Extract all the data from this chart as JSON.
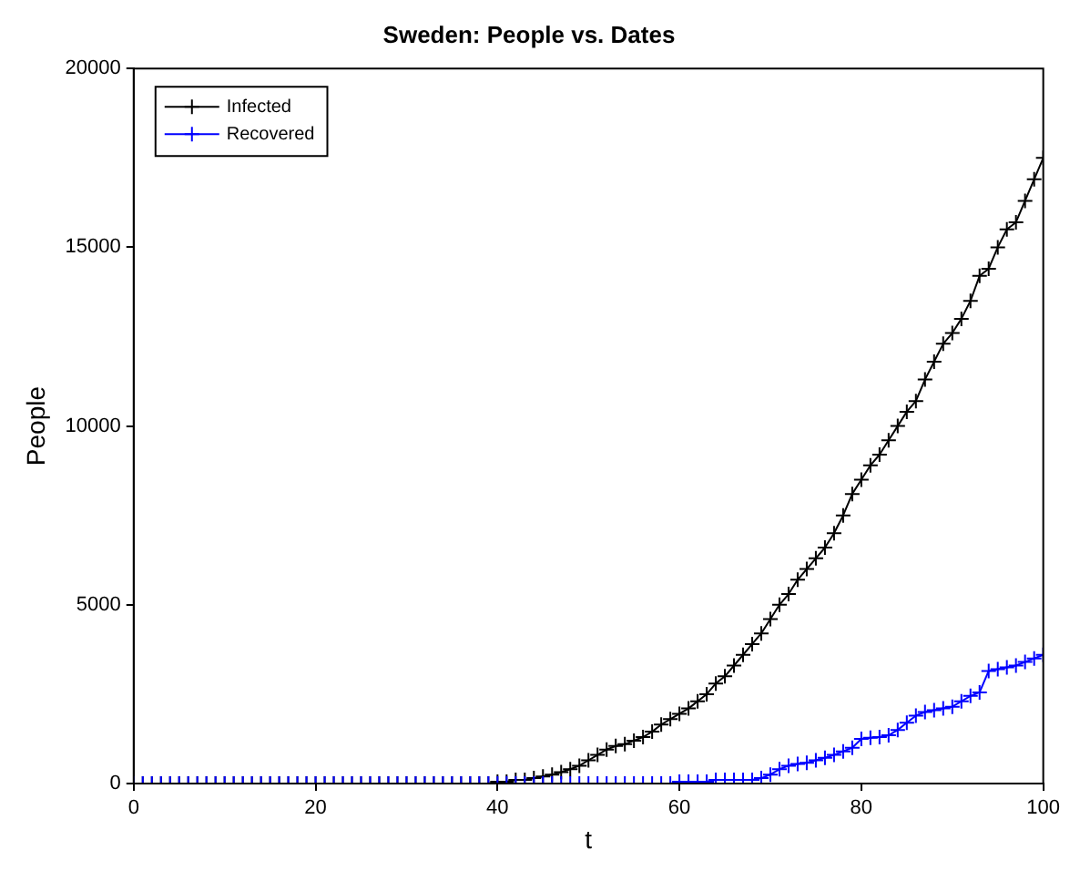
{
  "chart_data": {
    "type": "line",
    "title": "Sweden: People vs. Dates",
    "xlabel": "t",
    "ylabel": "People",
    "x": [
      0,
      1,
      2,
      3,
      4,
      5,
      6,
      7,
      8,
      9,
      10,
      11,
      12,
      13,
      14,
      15,
      16,
      17,
      18,
      19,
      20,
      21,
      22,
      23,
      24,
      25,
      26,
      27,
      28,
      29,
      30,
      31,
      32,
      33,
      34,
      35,
      36,
      37,
      38,
      39,
      40,
      41,
      42,
      43,
      44,
      45,
      46,
      47,
      48,
      49,
      50,
      51,
      52,
      53,
      54,
      55,
      56,
      57,
      58,
      59,
      60,
      61,
      62,
      63,
      64,
      65,
      66,
      67,
      68,
      69,
      70,
      71,
      72,
      73,
      74,
      75,
      76,
      77,
      78,
      79,
      80,
      81,
      82,
      83,
      84,
      85,
      86,
      87,
      88,
      89,
      90,
      91,
      92,
      93,
      94,
      95,
      96,
      97,
      98,
      99,
      100
    ],
    "series": [
      {
        "name": "Infected",
        "color": "#000000",
        "values": [
          0,
          0,
          0,
          0,
          0,
          0,
          0,
          0,
          0,
          0,
          0,
          0,
          0,
          0,
          0,
          0,
          0,
          0,
          0,
          0,
          0,
          0,
          0,
          0,
          0,
          0,
          0,
          0,
          0,
          0,
          0,
          0,
          0,
          0,
          0,
          0,
          0,
          0,
          0,
          0,
          50,
          50,
          100,
          100,
          150,
          200,
          250,
          320,
          400,
          500,
          650,
          800,
          950,
          1050,
          1100,
          1200,
          1300,
          1450,
          1650,
          1800,
          1950,
          2100,
          2300,
          2500,
          2800,
          3000,
          3300,
          3600,
          3900,
          4200,
          4600,
          5000,
          5300,
          5700,
          6000,
          6300,
          6600,
          7000,
          7500,
          8100,
          8500,
          8900,
          9200,
          9600,
          10000,
          10400,
          10700,
          11300,
          11800,
          12300,
          12600,
          13000,
          13500,
          14200,
          14400,
          15000,
          15500,
          15700,
          16300,
          16900,
          17500
        ]
      },
      {
        "name": "Recovered",
        "color": "#0000ff",
        "values": [
          0,
          0,
          0,
          0,
          0,
          0,
          0,
          0,
          0,
          0,
          0,
          0,
          0,
          0,
          0,
          0,
          0,
          0,
          0,
          0,
          0,
          0,
          0,
          0,
          0,
          0,
          0,
          0,
          0,
          0,
          0,
          0,
          0,
          0,
          0,
          0,
          0,
          0,
          0,
          0,
          0,
          0,
          0,
          0,
          0,
          0,
          0,
          0,
          0,
          0,
          0,
          0,
          0,
          0,
          0,
          0,
          0,
          0,
          0,
          0,
          50,
          50,
          50,
          50,
          100,
          100,
          100,
          100,
          100,
          150,
          250,
          400,
          500,
          550,
          580,
          650,
          720,
          800,
          900,
          1000,
          1250,
          1280,
          1300,
          1350,
          1500,
          1700,
          1900,
          2000,
          2050,
          2100,
          2150,
          2300,
          2450,
          2550,
          3150,
          3200,
          3250,
          3300,
          3400,
          3500,
          3600
        ]
      }
    ],
    "xlim": [
      0,
      100
    ],
    "xticks": [
      0,
      20,
      40,
      60,
      80,
      100
    ],
    "ylim": [
      0,
      20000
    ],
    "yticks": [
      0,
      5000,
      10000,
      15000,
      20000
    ],
    "grid": false,
    "legend": "top left",
    "marker": "cross",
    "line_style": "solid"
  }
}
